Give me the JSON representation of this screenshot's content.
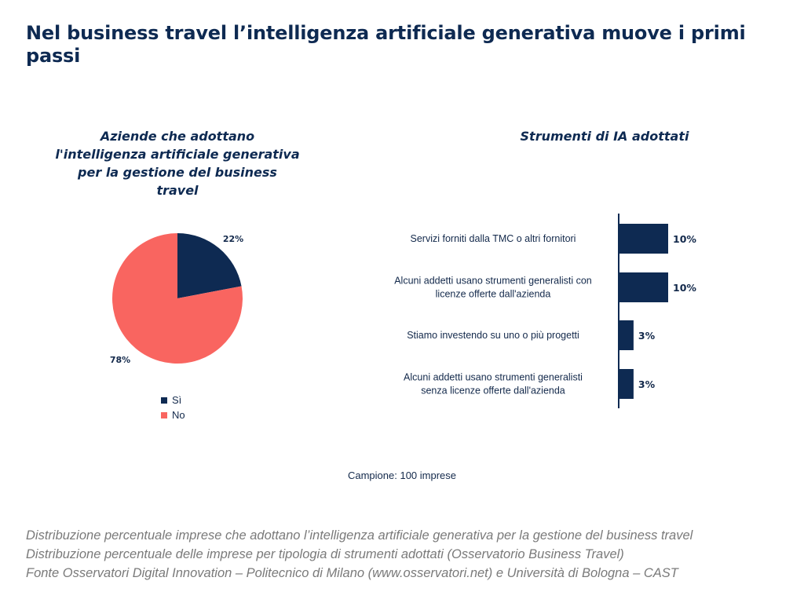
{
  "header": {
    "title": "Nel business travel l’intelligenza artificiale generativa muove i primi passi"
  },
  "colors": {
    "navy": "#0e2a52",
    "coral": "#f96560"
  },
  "chart_data": [
    {
      "type": "pie",
      "title": "Aziende che adottano l'intelligenza artificiale generativa per la gestione del business travel",
      "slices": [
        {
          "label": "Sì",
          "value": 22,
          "display": "22%",
          "color": "#0e2a52"
        },
        {
          "label": "No",
          "value": 78,
          "display": "78%",
          "color": "#f96560"
        }
      ],
      "legend_position": "bottom"
    },
    {
      "type": "bar",
      "orientation": "horizontal",
      "title": "Strumenti di IA adottati",
      "categories": [
        [
          "Servizi forniti dalla TMC o altri fornitori"
        ],
        [
          "Alcuni addetti usano strumenti generalisti con",
          "licenze offerte dall'azienda"
        ],
        [
          "Stiamo investendo su uno o più progetti"
        ],
        [
          "Alcuni addetti usano strumenti generalisti",
          "senza licenze offerte dall'azienda"
        ]
      ],
      "values": [
        10,
        10,
        3,
        3
      ],
      "value_labels": [
        "10%",
        "10%",
        "3%",
        "3%"
      ],
      "color": "#0e2a52"
    }
  ],
  "sample": "Campione: 100 imprese",
  "footer": {
    "lines": [
      "Distribuzione percentuale imprese che adottano l’intelligenza artificiale generativa per la gestione del business travel",
      "Distribuzione percentuale delle imprese per tipologia di strumenti adottati (Osservatorio Business Travel)",
      "Fonte Osservatori Digital Innovation – Politecnico di Milano (www.osservatori.net) e Università di Bologna – CAST"
    ]
  }
}
